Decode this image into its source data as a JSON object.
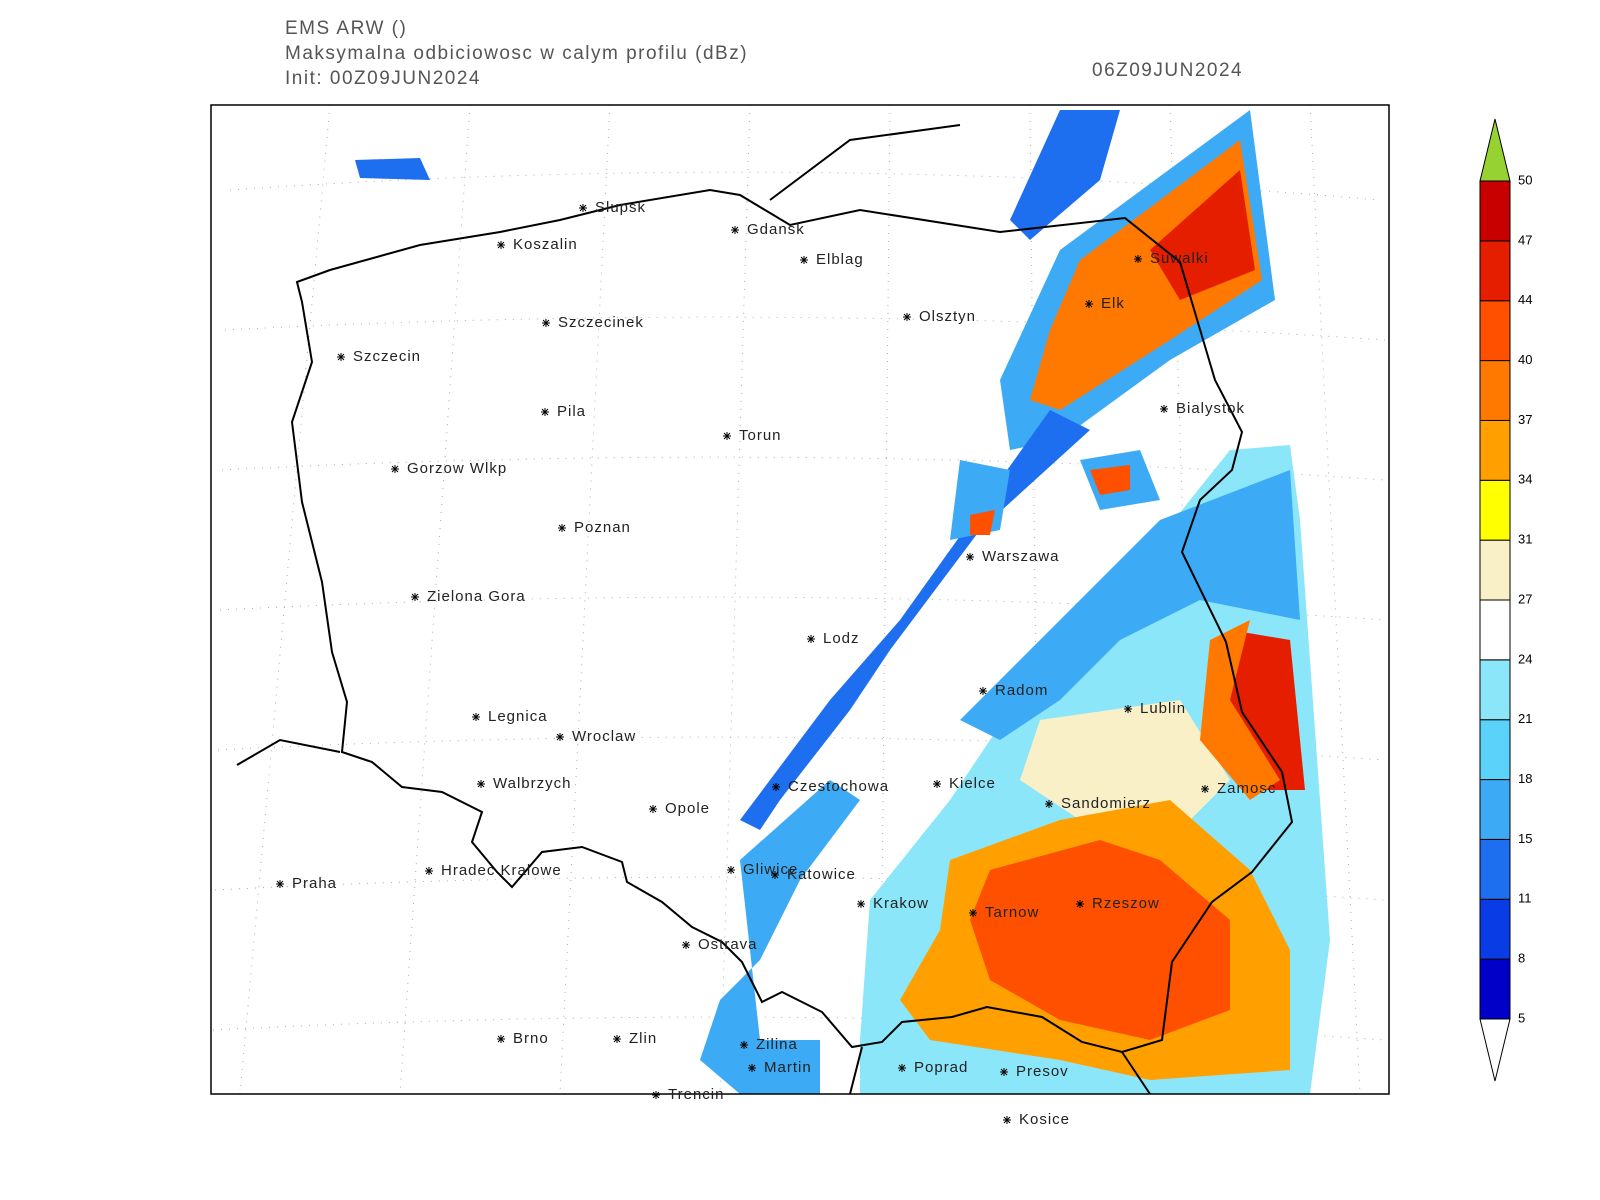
{
  "header": {
    "model": "EMS ARW ()",
    "title": "Maksymalna odbiciowosc w calym profilu (dBz)",
    "init": "Init: 00Z09JUN2024",
    "valid": "06Z09JUN2024"
  },
  "cities": [
    "Slupsk",
    "Gdansk",
    "Koszalin",
    "Elblag",
    "Suwalki",
    "Elk",
    "Szczecinek",
    "Olsztyn",
    "Szczecin",
    "Bialystok",
    "Pila",
    "Torun",
    "Gorzow Wlkp",
    "Poznan",
    "Warszawa",
    "Zielona Gora",
    "Lodz",
    "Radom",
    "Lublin",
    "Legnica",
    "Wroclaw",
    "Kielce",
    "Czestochowa",
    "Zamosc",
    "Walbrzych",
    "Sandomierz",
    "Opole",
    "Hradec Kralowe",
    "Gliwice",
    "Katowice",
    "Praha",
    "Krakow",
    "Rzeszow",
    "Tarnow",
    "Ostrava",
    "Brno",
    "Zlin",
    "Zilina",
    "Martin",
    "Poprad",
    "Presov",
    "Trencin",
    "Kosice"
  ],
  "colorbar": {
    "levels": [
      5,
      8,
      11,
      15,
      18,
      21,
      24,
      27,
      31,
      34,
      37,
      40,
      44,
      47,
      50
    ],
    "colors": [
      "#0000c8",
      "#0a3ce6",
      "#1e6ef0",
      "#3caaf5",
      "#5ad2fa",
      "#8ce6fa",
      "#ffffff",
      "#faf0c8",
      "#ffff00",
      "#ffa000",
      "#ff7800",
      "#ff5000",
      "#e61e00",
      "#c80000"
    ],
    "under_color": "#ffffff",
    "over_color": "#96d232"
  }
}
